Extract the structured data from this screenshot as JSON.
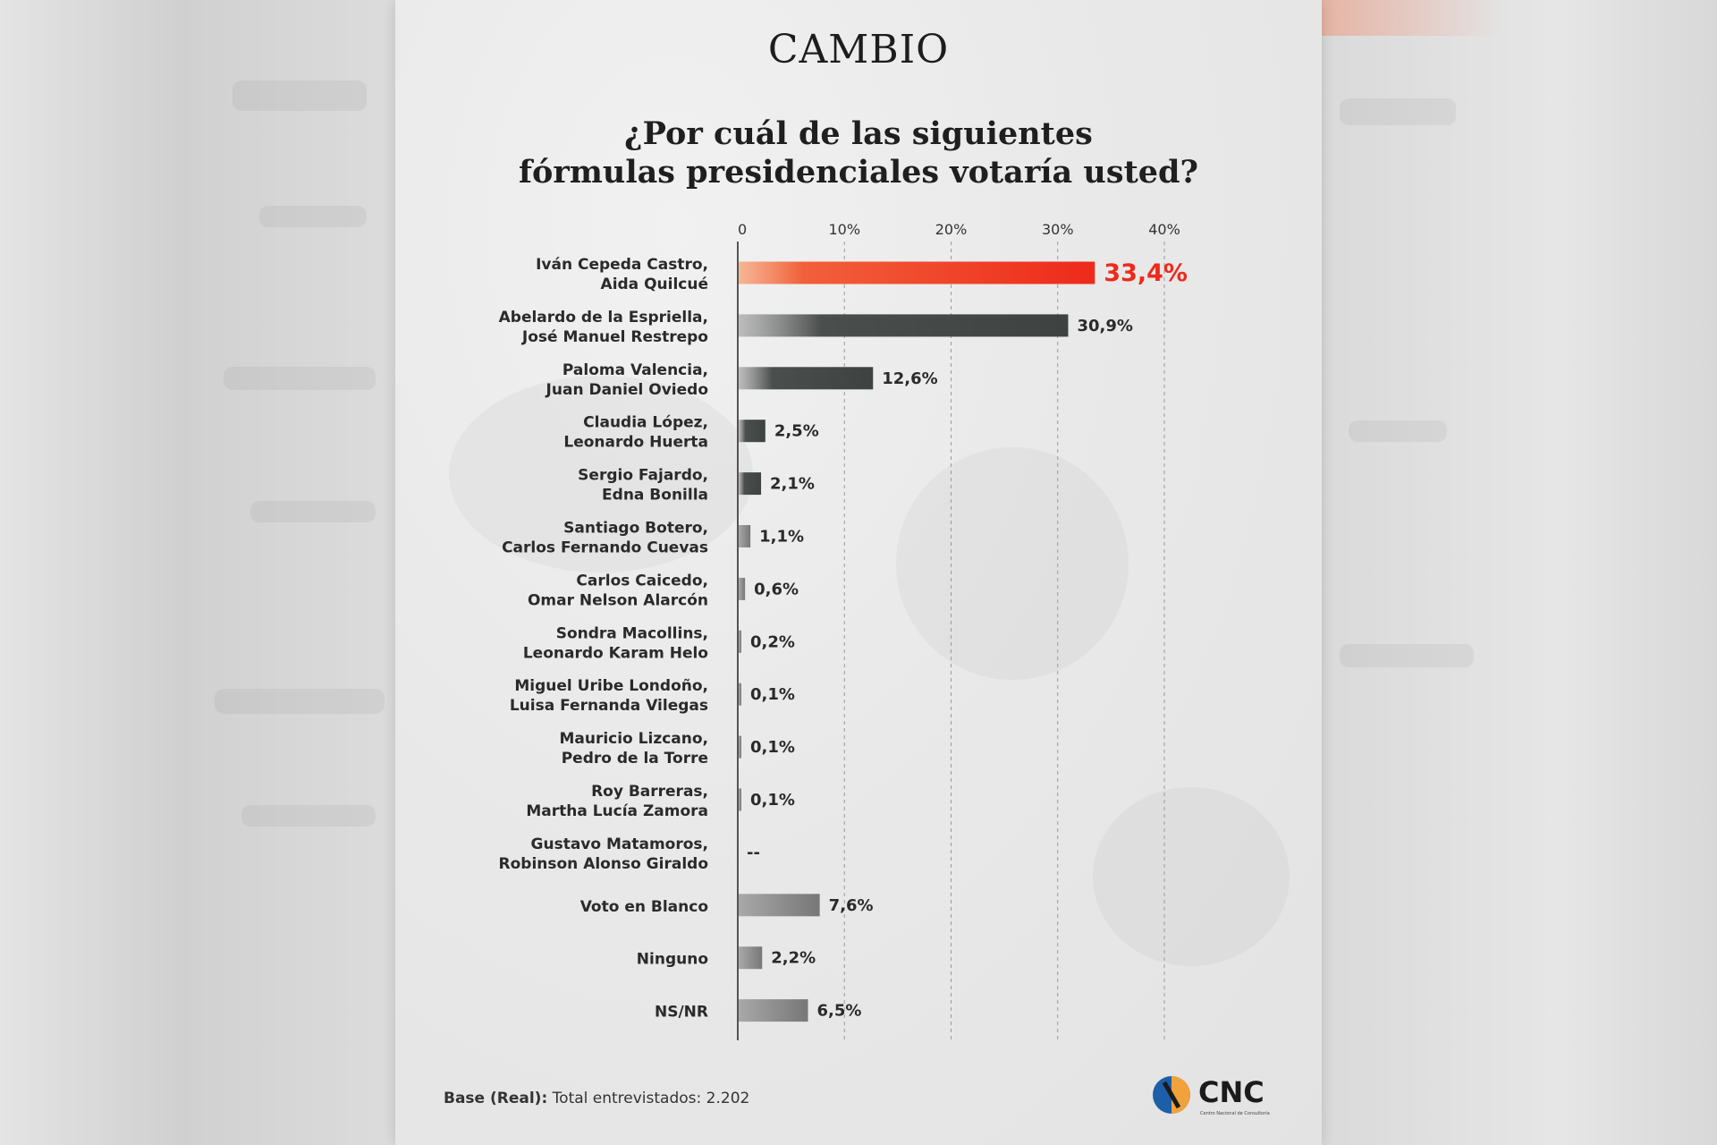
{
  "brand": "CAMBIO",
  "title_lines": [
    "¿Por cuál de las siguientes",
    "fórmulas presidenciales votaría usted?"
  ],
  "footer": {
    "base_label": "Base (Real):",
    "base_text": " Total entrevistados: 2.202"
  },
  "logo": {
    "name": "CNC",
    "subtitle": "Centro Nacional de Consultoría",
    "icon": "cnc-logo-icon"
  },
  "colors": {
    "highlight": "#ee2a1a",
    "dark": "#3e4241",
    "light": "#7b7b7b",
    "axis": "#555555"
  },
  "chart_data": {
    "type": "bar",
    "orientation": "horizontal",
    "xlim": [
      0,
      40
    ],
    "ticks": [
      {
        "value": 0,
        "label": "0"
      },
      {
        "value": 10,
        "label": "10%"
      },
      {
        "value": 20,
        "label": "20%"
      },
      {
        "value": 30,
        "label": "30%"
      },
      {
        "value": 40,
        "label": "40%"
      }
    ],
    "grid": "vertical dashed",
    "categories": [
      {
        "lines": [
          "Iván Cepeda Castro,",
          "Aida Quilcué"
        ],
        "value": 33.4,
        "label": "33,4%",
        "style": "highlight"
      },
      {
        "lines": [
          "Abelardo de la Espriella,",
          "José Manuel Restrepo"
        ],
        "value": 30.9,
        "label": "30,9%",
        "style": "dark"
      },
      {
        "lines": [
          "Paloma Valencia,",
          "Juan Daniel Oviedo"
        ],
        "value": 12.6,
        "label": "12,6%",
        "style": "dark"
      },
      {
        "lines": [
          "Claudia López,",
          "Leonardo Huerta"
        ],
        "value": 2.5,
        "label": "2,5%",
        "style": "dark"
      },
      {
        "lines": [
          "Sergio Fajardo,",
          "Edna Bonilla"
        ],
        "value": 2.1,
        "label": "2,1%",
        "style": "dark"
      },
      {
        "lines": [
          "Santiago Botero,",
          "Carlos Fernando Cuevas"
        ],
        "value": 1.1,
        "label": "1,1%",
        "style": "light"
      },
      {
        "lines": [
          "Carlos Caicedo,",
          "Omar Nelson Alarcón"
        ],
        "value": 0.6,
        "label": "0,6%",
        "style": "light"
      },
      {
        "lines": [
          "Sondra Macollins,",
          "Leonardo Karam Helo"
        ],
        "value": 0.2,
        "label": "0,2%",
        "style": "light"
      },
      {
        "lines": [
          "Miguel Uribe Londoño,",
          "Luisa Fernanda Vilegas"
        ],
        "value": 0.1,
        "label": "0,1%",
        "style": "light"
      },
      {
        "lines": [
          "Mauricio Lizcano,",
          "Pedro de la Torre"
        ],
        "value": 0.1,
        "label": "0,1%",
        "style": "light"
      },
      {
        "lines": [
          "Roy Barreras,",
          "Martha Lucía Zamora"
        ],
        "value": 0.1,
        "label": "0,1%",
        "style": "light"
      },
      {
        "lines": [
          "Gustavo Matamoros,",
          "Robinson Alonso Giraldo"
        ],
        "value": null,
        "label": "--",
        "style": "light"
      },
      {
        "lines": [
          "Voto en Blanco"
        ],
        "value": 7.6,
        "label": "7,6%",
        "style": "light"
      },
      {
        "lines": [
          "Ninguno"
        ],
        "value": 2.2,
        "label": "2,2%",
        "style": "light"
      },
      {
        "lines": [
          "NS/NR"
        ],
        "value": 6.5,
        "label": "6,5%",
        "style": "light"
      }
    ]
  }
}
